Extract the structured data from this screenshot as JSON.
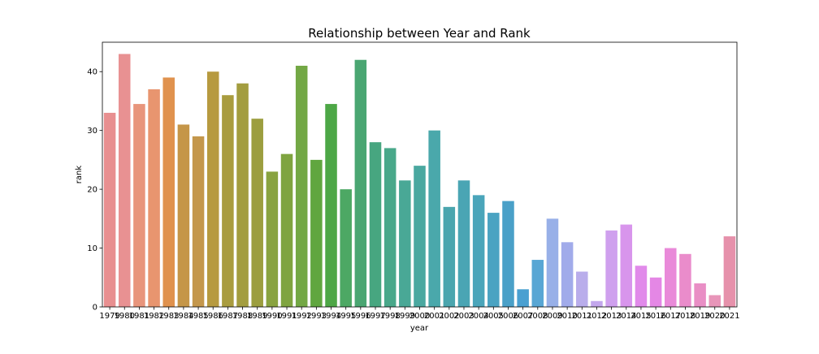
{
  "chart_data": {
    "type": "bar",
    "title": "Relationship between Year and Rank",
    "xlabel": "year",
    "ylabel": "rank",
    "ylim": [
      0,
      45
    ],
    "yticks": [
      0,
      10,
      20,
      30,
      40
    ],
    "grid": false,
    "legend": "none",
    "categories": [
      "1979",
      "1980",
      "1981",
      "1982",
      "1983",
      "1984",
      "1985",
      "1986",
      "1987",
      "1988",
      "1989",
      "1990",
      "1991",
      "1992",
      "1993",
      "1994",
      "1995",
      "1996",
      "1997",
      "1998",
      "1999",
      "2000",
      "2001",
      "2002",
      "2003",
      "2004",
      "2005",
      "2006",
      "2007",
      "2008",
      "2009",
      "2010",
      "2011",
      "2012",
      "2013",
      "2014",
      "2015",
      "2016",
      "2017",
      "2018",
      "2019",
      "2020",
      "2021"
    ],
    "values": [
      33,
      43,
      34.5,
      37,
      39,
      31,
      29,
      40,
      36,
      38,
      32,
      23,
      26,
      41,
      25,
      34.5,
      20,
      42,
      28,
      27,
      21.5,
      24,
      30,
      17,
      21.5,
      19,
      16,
      18,
      3,
      8,
      15,
      11,
      6,
      1,
      13,
      14,
      7,
      5,
      10,
      9,
      4,
      2,
      12
    ],
    "colors": [
      "#e88f90",
      "#e89192",
      "#e8957c",
      "#e8956f",
      "#e0924e",
      "#c59648",
      "#c4974c",
      "#b79a3f",
      "#a99c3f",
      "#a39d3f",
      "#9c9e3f",
      "#89a340",
      "#7fa440",
      "#73a845",
      "#60a63f",
      "#4da746",
      "#4da864",
      "#4aa672",
      "#47a680",
      "#49a88a",
      "#49a896",
      "#4aa8a0",
      "#4aa8ab",
      "#4aa5ae",
      "#4aa5b4",
      "#4aa5ba",
      "#4aa3c2",
      "#4aa0c8",
      "#4aa0d1",
      "#58a6d4",
      "#98b0e8",
      "#a1abea",
      "#b9adeb",
      "#c3a7ed",
      "#cfa0ee",
      "#d895ec",
      "#e18aea",
      "#e487e5",
      "#e98ad9",
      "#ea8ccb",
      "#e98ec5",
      "#e895b9",
      "#e691ab"
    ]
  }
}
